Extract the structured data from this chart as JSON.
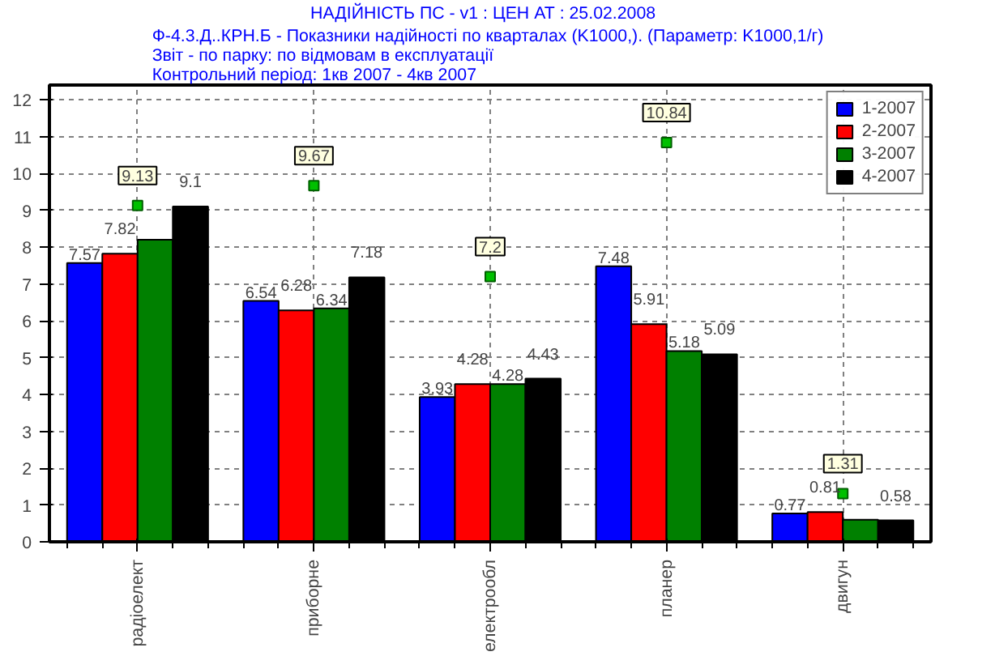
{
  "chart_data": {
    "type": "bar",
    "title": "НАДІЙНІСТЬ ПС - v1 :  ЦЕН  АТ :  25.02.2008",
    "subtitle": "Ф-4.3.Д..КРН.Б - Показники надійності по кварталах (K1000,).  (Параметр: K1000,1/г)\nЗвіт - по парку: по відмовам в експлуатації\nКонтрольний період: 1кв 2007 - 4кв 2007",
    "categories": [
      "радіоелект",
      "приборне",
      "електрообл",
      "планер",
      "двигун"
    ],
    "series": [
      {
        "name": "1-2007",
        "color": "#0000ff",
        "values": [
          7.57,
          6.54,
          3.93,
          7.48,
          0.77
        ],
        "value_labels": [
          "7.57",
          "6.54",
          "3.93",
          "7.48",
          "0.77"
        ]
      },
      {
        "name": "2-2007",
        "color": "#ff0000",
        "values": [
          7.82,
          6.28,
          4.28,
          5.91,
          0.81
        ],
        "value_labels": [
          "7.82",
          "6.28",
          "4.28",
          "5.91",
          "0.81"
        ]
      },
      {
        "name": "3-2007",
        "color": "#008000",
        "values": [
          8.2,
          6.34,
          4.28,
          5.18,
          0.6
        ],
        "value_labels": [
          null,
          "6.34",
          "4.28",
          "5.18",
          null
        ]
      },
      {
        "name": "4-2007",
        "color": "#000000",
        "values": [
          9.1,
          7.18,
          4.43,
          5.09,
          0.58
        ],
        "value_labels": [
          "9.1",
          "7.18",
          "4.43",
          "5.09",
          "0.58"
        ]
      },
      {
        "type": "scatter",
        "color": "#00c000",
        "values": [
          9.13,
          9.67,
          7.2,
          10.84,
          1.31
        ],
        "value_labels": [
          "9.13",
          "9.67",
          "7.2",
          "10.84",
          "1.31"
        ]
      }
    ],
    "marker": "square",
    "ylim": [
      0,
      12.4
    ],
    "yticks": [
      0,
      1,
      2,
      3,
      4,
      5,
      6,
      7,
      8,
      9,
      10,
      11,
      12
    ],
    "grid": true,
    "legend": "top right"
  }
}
